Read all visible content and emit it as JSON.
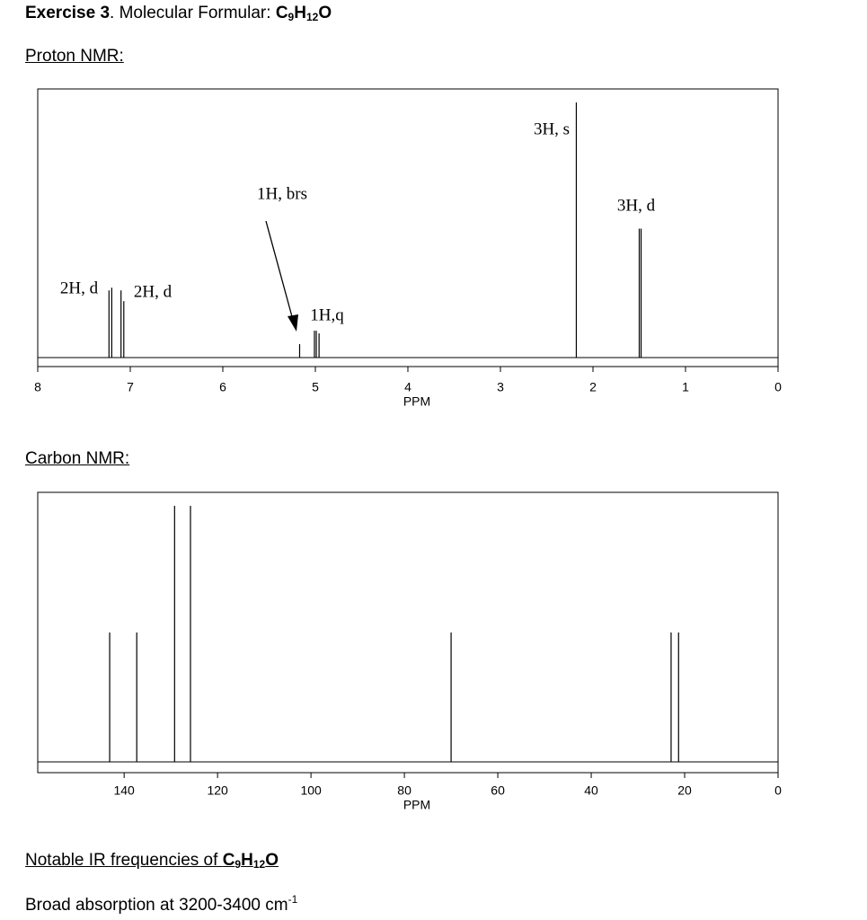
{
  "exercise": {
    "label": "Exercise 3",
    "text": ". Molecular Formular: "
  },
  "formula": [
    {
      "t": "C"
    },
    {
      "sub": "9"
    },
    {
      "t": "H"
    },
    {
      "sub": "12"
    },
    {
      "t": "O"
    }
  ],
  "chart_data": [
    {
      "type": "spectrum",
      "title": "Proton NMR:",
      "xlabel": "PPM",
      "xlim": [
        8,
        0
      ],
      "xticks": [
        8,
        7,
        6,
        5,
        4,
        3,
        2,
        1,
        0
      ],
      "ylim": [
        0,
        100
      ],
      "color": "#000000",
      "x": [
        7.23,
        7.2,
        7.1,
        7.07,
        5.17,
        5.01,
        4.99,
        4.96,
        2.18,
        1.5,
        1.48
      ],
      "values": [
        25,
        26,
        25,
        21,
        5,
        10,
        10,
        9,
        95,
        48,
        48
      ],
      "annotations": [
        {
          "text": "2H, d"
        },
        {
          "text": "2H, d"
        },
        {
          "text": "1H, brs"
        },
        {
          "text": "1H,q"
        },
        {
          "text": "3H, s"
        },
        {
          "text": "3H, d"
        }
      ]
    },
    {
      "type": "spectrum",
      "title": "Carbon NMR:",
      "xlabel": "PPM",
      "xlim": [
        158.5,
        0
      ],
      "xticks": [
        140,
        120,
        100,
        80,
        60,
        40,
        20,
        0
      ],
      "ylim": [
        0,
        100
      ],
      "color": "#000000",
      "x": [
        143.1,
        137.3,
        129.2,
        125.8,
        70.0,
        22.9,
        21.3
      ],
      "values": [
        48,
        48,
        95,
        95,
        48,
        48,
        48
      ]
    }
  ],
  "ir": {
    "heading": "Notable IR frequencies of ",
    "text": "Broad absorption at 3200-3400 cm",
    "superscript": "-1"
  }
}
